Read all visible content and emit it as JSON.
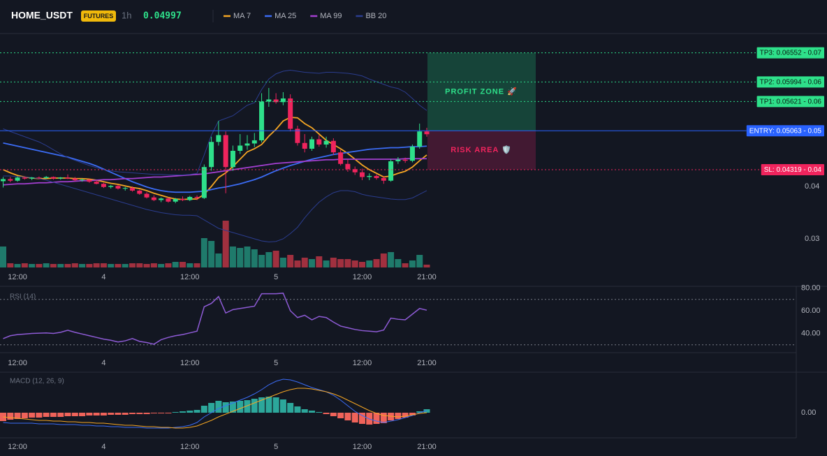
{
  "header": {
    "symbol": "HOME_USDT",
    "badge": "FUTURES",
    "interval": "1h",
    "price": 0.04997
  },
  "chart_data": [
    {
      "type": "candlestick",
      "categories": [
        null,
        null,
        "12:00",
        null,
        null,
        null,
        null,
        null,
        null,
        null,
        null,
        null,
        null,
        null,
        "4",
        null,
        null,
        null,
        null,
        null,
        null,
        null,
        null,
        null,
        null,
        null,
        "12:00",
        null,
        null,
        null,
        null,
        null,
        null,
        null,
        null,
        null,
        null,
        null,
        "5",
        null,
        null,
        null,
        null,
        null,
        null,
        null,
        null,
        null,
        null,
        null,
        "12:00",
        null,
        null,
        null,
        null,
        null,
        null,
        null,
        null,
        "21:00"
      ],
      "open": [
        0.041,
        0.0414,
        0.0411,
        0.0417,
        0.0415,
        0.0417,
        0.0416,
        0.0418,
        0.0415,
        0.0417,
        0.0415,
        0.0412,
        0.0413,
        0.0409,
        0.0405,
        0.0399,
        0.0401,
        0.0396,
        0.0397,
        0.0392,
        0.0386,
        0.0379,
        0.0374,
        0.0377,
        0.0371,
        0.0376,
        0.0374,
        0.038,
        0.0378,
        0.0437,
        0.0485,
        0.0498,
        0.0437,
        0.0468,
        0.0478,
        0.0482,
        0.0488,
        0.0562,
        0.0566,
        0.0561,
        0.0568,
        0.051,
        0.0483,
        0.0472,
        0.049,
        0.048,
        0.0487,
        0.0465,
        0.0443,
        0.0433,
        0.0427,
        0.0418,
        0.042,
        0.0416,
        0.0411,
        0.0448,
        0.0451,
        0.0449,
        0.0476,
        0.0505
      ],
      "high": [
        0.0418,
        0.0418,
        0.0419,
        0.0419,
        0.0418,
        0.0419,
        0.042,
        0.0419,
        0.0418,
        0.0423,
        0.0418,
        0.0415,
        0.0414,
        0.0412,
        0.0407,
        0.0403,
        0.0403,
        0.0399,
        0.04,
        0.0394,
        0.0389,
        0.0383,
        0.0379,
        0.0379,
        0.0378,
        0.0381,
        0.0382,
        0.0383,
        0.0442,
        0.0495,
        0.0525,
        0.0505,
        0.0478,
        0.05,
        0.0498,
        0.0502,
        0.0578,
        0.0588,
        0.0578,
        0.058,
        0.0576,
        0.0516,
        0.05,
        0.0495,
        0.0498,
        0.0495,
        0.0492,
        0.047,
        0.0452,
        0.0438,
        0.0434,
        0.0425,
        0.0423,
        0.042,
        0.0452,
        0.0456,
        0.0455,
        0.048,
        0.052,
        0.0512
      ],
      "low": [
        0.0398,
        0.0408,
        0.0409,
        0.0413,
        0.0412,
        0.0414,
        0.0414,
        0.0413,
        0.0413,
        0.0414,
        0.041,
        0.0409,
        0.0407,
        0.0404,
        0.0397,
        0.0396,
        0.0394,
        0.0392,
        0.039,
        0.0384,
        0.0377,
        0.0372,
        0.037,
        0.0369,
        0.0368,
        0.0372,
        0.0372,
        0.0374,
        0.0376,
        0.043,
        0.0478,
        0.0387,
        0.043,
        0.0462,
        0.047,
        0.0475,
        0.0484,
        0.0552,
        0.0558,
        0.0555,
        0.0505,
        0.0478,
        0.0465,
        0.0468,
        0.0476,
        0.0474,
        0.046,
        0.044,
        0.0428,
        0.0422,
        0.0412,
        0.0412,
        0.0413,
        0.0405,
        0.0409,
        0.0443,
        0.0445,
        0.0446,
        0.0472,
        0.0495
      ],
      "close": [
        0.0414,
        0.0411,
        0.0417,
        0.0415,
        0.0417,
        0.0416,
        0.0418,
        0.0415,
        0.0417,
        0.0415,
        0.0412,
        0.0413,
        0.0409,
        0.0405,
        0.0399,
        0.0401,
        0.0396,
        0.0397,
        0.0392,
        0.0386,
        0.0379,
        0.0374,
        0.0377,
        0.0371,
        0.0376,
        0.0374,
        0.038,
        0.0378,
        0.0437,
        0.0485,
        0.0498,
        0.0437,
        0.0468,
        0.0478,
        0.0482,
        0.0488,
        0.0562,
        0.0566,
        0.0561,
        0.0568,
        0.051,
        0.0483,
        0.0472,
        0.049,
        0.048,
        0.0487,
        0.0465,
        0.0443,
        0.0433,
        0.0427,
        0.0418,
        0.042,
        0.0416,
        0.0411,
        0.0448,
        0.0451,
        0.0449,
        0.0476,
        0.0505,
        0.04997
      ],
      "up_color": "#2ee08a",
      "down_color": "#f0245d",
      "volume": [
        30,
        6,
        5,
        6,
        5,
        5,
        6,
        5,
        5,
        5,
        6,
        5,
        5,
        6,
        6,
        5,
        5,
        5,
        6,
        6,
        5,
        6,
        5,
        6,
        8,
        8,
        6,
        6,
        42,
        38,
        20,
        67,
        30,
        28,
        30,
        26,
        18,
        22,
        24,
        14,
        18,
        10,
        14,
        12,
        16,
        10,
        14,
        12,
        12,
        10,
        8,
        10,
        12,
        20,
        22,
        12,
        6,
        10,
        18,
        4
      ],
      "volume_lim": [
        0,
        100
      ],
      "volume_up_color": "#1f7a6b",
      "volume_down_color": "#a1303f",
      "series": [
        {
          "name": "MA 7",
          "color": "#f5a623",
          "values": [
            0.0432,
            0.0426,
            0.0421,
            0.0418,
            0.0416,
            0.0415,
            0.0415,
            0.0416,
            0.0416,
            0.0416,
            0.0415,
            0.0415,
            0.0414,
            0.0412,
            0.0409,
            0.0406,
            0.0404,
            0.0401,
            0.0398,
            0.0396,
            0.0392,
            0.0387,
            0.0383,
            0.0379,
            0.0376,
            0.0375,
            0.0376,
            0.0376,
            0.0385,
            0.04,
            0.0417,
            0.0426,
            0.0438,
            0.0452,
            0.0466,
            0.0472,
            0.048,
            0.0496,
            0.0509,
            0.0525,
            0.0532,
            0.0531,
            0.052,
            0.0512,
            0.05,
            0.0488,
            0.048,
            0.0472,
            0.0463,
            0.0452,
            0.0441,
            0.0432,
            0.0425,
            0.0418,
            0.042,
            0.0425,
            0.0429,
            0.0437,
            0.0449,
            0.046
          ]
        },
        {
          "name": "MA 25",
          "color": "#3b6cf5",
          "values": [
            0.0483,
            0.048,
            0.0477,
            0.0474,
            0.0471,
            0.0468,
            0.0465,
            0.0462,
            0.0459,
            0.0456,
            0.0452,
            0.0448,
            0.0444,
            0.0439,
            0.0433,
            0.0427,
            0.0421,
            0.0415,
            0.0409,
            0.0404,
            0.0399,
            0.0395,
            0.0392,
            0.039,
            0.0389,
            0.0389,
            0.0389,
            0.039,
            0.0391,
            0.0394,
            0.0397,
            0.0399,
            0.0402,
            0.0405,
            0.0409,
            0.0413,
            0.0418,
            0.0424,
            0.043,
            0.0435,
            0.044,
            0.0444,
            0.0448,
            0.0452,
            0.0455,
            0.0458,
            0.0461,
            0.0463,
            0.0465,
            0.0467,
            0.0469,
            0.0471,
            0.0472,
            0.0473,
            0.0474,
            0.0474,
            0.0475,
            0.0476,
            0.0476,
            0.0477
          ]
        },
        {
          "name": "MA 99",
          "color": "#a43fd1",
          "values": [
            0.0403,
            0.0404,
            0.0405,
            0.0405,
            0.0406,
            0.0407,
            0.0407,
            0.0408,
            0.0409,
            0.0409,
            0.041,
            0.0411,
            0.0411,
            0.0412,
            0.0413,
            0.0413,
            0.0414,
            0.0415,
            0.0415,
            0.0416,
            0.0417,
            0.0418,
            0.0418,
            0.0419,
            0.042,
            0.0421,
            0.0422,
            0.0423,
            0.0424,
            0.0426,
            0.0428,
            0.043,
            0.0432,
            0.0434,
            0.0436,
            0.0438,
            0.044,
            0.0442,
            0.0444,
            0.0445,
            0.0446,
            0.0447,
            0.0448,
            0.0449,
            0.045,
            0.0451,
            0.0451,
            0.0452,
            0.0452,
            0.0452,
            0.0452,
            0.0452,
            0.0452,
            0.0452,
            0.0452,
            0.0452,
            0.0453,
            0.0453,
            0.0453,
            0.0453
          ]
        },
        {
          "name": "BB 20",
          "color": "#2b3d8f",
          "upper": [
            0.051,
            0.0505,
            0.05,
            0.0495,
            0.049,
            0.0485,
            0.0478,
            0.047,
            0.0462,
            0.0455,
            0.045,
            0.0445,
            0.044,
            0.0436,
            0.0432,
            0.043,
            0.0428,
            0.0427,
            0.0426,
            0.0425,
            0.0424,
            0.0423,
            0.0423,
            0.0422,
            0.0422,
            0.0422,
            0.0423,
            0.0425,
            0.046,
            0.0498,
            0.0525,
            0.053,
            0.0535,
            0.0545,
            0.0555,
            0.056,
            0.0585,
            0.0605,
            0.0615,
            0.062,
            0.0622,
            0.062,
            0.0618,
            0.0617,
            0.0616,
            0.0618,
            0.0618,
            0.0617,
            0.0616,
            0.0614,
            0.0611,
            0.0605,
            0.06,
            0.0595,
            0.059,
            0.0587,
            0.058,
            0.0568,
            0.0555,
            0.0545
          ],
          "lower": [
            0.042,
            0.042,
            0.0419,
            0.0418,
            0.0417,
            0.0415,
            0.0412,
            0.0408,
            0.0404,
            0.04,
            0.0396,
            0.0392,
            0.0388,
            0.0384,
            0.038,
            0.0376,
            0.0372,
            0.0368,
            0.0364,
            0.036,
            0.0356,
            0.0353,
            0.035,
            0.0348,
            0.0346,
            0.0345,
            0.0345,
            0.0344,
            0.0336,
            0.0328,
            0.032,
            0.0316,
            0.0312,
            0.0308,
            0.0304,
            0.03,
            0.0296,
            0.0294,
            0.0295,
            0.03,
            0.031,
            0.0322,
            0.034,
            0.0356,
            0.037,
            0.038,
            0.0388,
            0.0392,
            0.0392,
            0.039,
            0.0385,
            0.0382,
            0.038,
            0.0378,
            0.0376,
            0.0375,
            0.0375,
            0.0378,
            0.0385,
            0.0392
          ]
        }
      ],
      "ylim": [
        0.02453,
        0.06893
      ],
      "yticks": [
        0.04,
        0.03
      ],
      "zones": [
        {
          "label": "PROFIT ZONE 🚀",
          "from": 0.05063,
          "to": 0.06552,
          "color": "#1c8a5c",
          "text_color": "#2ee08a"
        },
        {
          "label": "RISK AREA 🛡️",
          "from": 0.04319,
          "to": 0.05063,
          "color": "#8a1e4a",
          "text_color": "#f0245d"
        }
      ],
      "levels": [
        {
          "label": "TP3: 0.06552 - 0.07",
          "value": 0.06552,
          "color": "#2ee08a",
          "text_color": "#0b1a12",
          "style": "dotted"
        },
        {
          "label": "TP2: 0.05994 - 0.06",
          "value": 0.05994,
          "color": "#2ee08a",
          "text_color": "#0b1a12",
          "style": "dotted"
        },
        {
          "label": "TP1: 0.05621 - 0.06",
          "value": 0.05621,
          "color": "#2ee08a",
          "text_color": "#0b1a12",
          "style": "dotted"
        },
        {
          "label": "ENTRY: 0.05063 - 0.05",
          "value": 0.05063,
          "color": "#2962ff",
          "text_color": "#ffffff",
          "style": "solid"
        },
        {
          "label": "SL: 0.04319 - 0.04",
          "value": 0.04319,
          "color": "#f0245d",
          "text_color": "#ffffff",
          "style": "dotted"
        }
      ]
    },
    {
      "type": "line",
      "title": "RSI (14)",
      "color": "#8e5bd6",
      "values": [
        35.4,
        38,
        39,
        39.5,
        40,
        40.2,
        40.5,
        40,
        41,
        42.8,
        41,
        39.5,
        38,
        36.5,
        35,
        34,
        32.5,
        33.5,
        35.5,
        33,
        32,
        30.5,
        34.5,
        36.5,
        38,
        39,
        40.5,
        42,
        63.5,
        66.5,
        72.5,
        58,
        61,
        62,
        63,
        64,
        75,
        75,
        75,
        75.5,
        60,
        54,
        56,
        52,
        55,
        54,
        50,
        46.5,
        45,
        43.5,
        42.5,
        42,
        41.5,
        43,
        53.5,
        52.5,
        52,
        57,
        62,
        60.5
      ],
      "ylim": [
        23.08,
        81.54
      ],
      "yticks": [
        {
          "value": 80,
          "label": "80.00"
        },
        {
          "value": 60,
          "label": "60.00"
        },
        {
          "value": 40,
          "label": "40.00"
        }
      ],
      "levels": [
        70,
        30
      ]
    },
    {
      "type": "macd",
      "title": "MACD (12, 26, 9)",
      "series": [
        {
          "color": "#3b6cf5",
          "values": [
            -0.0007,
            -0.00075,
            -0.00075,
            -0.00075,
            -0.00075,
            -0.0008,
            -0.0008,
            -0.0008,
            -0.00085,
            -0.00085,
            -0.00085,
            -0.0009,
            -0.0009,
            -0.00095,
            -0.00095,
            -0.001,
            -0.001,
            -0.00105,
            -0.00105,
            -0.00105,
            -0.0011,
            -0.0011,
            -0.0011,
            -0.0011,
            -0.00105,
            -0.001,
            -0.0009,
            -0.0007,
            -0.0003,
            0,
            0.0003,
            0.0005,
            0.0007,
            0.0009,
            0.0011,
            0.00135,
            0.00165,
            0.002,
            0.00225,
            0.0024,
            0.00235,
            0.0022,
            0.002,
            0.0018,
            0.00165,
            0.0015,
            0.00125,
            0.0009,
            0.0005,
            0.0001,
            -0.0002,
            -0.00045,
            -0.0006,
            -0.0007,
            -0.0006,
            -0.0005,
            -0.00035,
            -0.0002,
            0,
            0.00015
          ]
        },
        {
          "color": "#f5a623",
          "values": [
            -0.0003,
            -0.00035,
            -0.0004,
            -0.00045,
            -0.0005,
            -0.00055,
            -0.00055,
            -0.0006,
            -0.0006,
            -0.00065,
            -0.00065,
            -0.0007,
            -0.0007,
            -0.00075,
            -0.00075,
            -0.0008,
            -0.00085,
            -0.0009,
            -0.0009,
            -0.00095,
            -0.001,
            -0.001,
            -0.00105,
            -0.00105,
            -0.0011,
            -0.0011,
            -0.00105,
            -0.00095,
            -0.00075,
            -0.00055,
            -0.0003,
            -0.0001,
            0.0001,
            0.0003,
            0.0005,
            0.0007,
            0.0009,
            0.0011,
            0.0013,
            0.0015,
            0.00165,
            0.00175,
            0.00175,
            0.0017,
            0.0016,
            0.0015,
            0.00135,
            0.00115,
            0.0009,
            0.00065,
            0.0004,
            0.00015,
            -5e-05,
            -0.0002,
            -0.00025,
            -0.0003,
            -0.00025,
            -0.00015,
            -5e-05,
            0
          ]
        }
      ],
      "histogram": {
        "up_color": "#2ca79b",
        "down_color": "#f0635a",
        "values": [
          -0.0006,
          -0.0005,
          -0.00045,
          -0.0004,
          -0.00035,
          -0.00035,
          -0.0003,
          -0.0003,
          -0.0003,
          -0.00025,
          -0.00025,
          -0.00025,
          -0.0002,
          -0.0002,
          -0.0002,
          -0.00015,
          -0.00015,
          -0.00015,
          -0.0001,
          -0.0001,
          -0.0001,
          -5e-05,
          -5e-05,
          -5e-05,
          5e-05,
          0.0001,
          0.00015,
          0.0002,
          0.0005,
          0.0007,
          0.00085,
          0.00075,
          0.0008,
          0.00085,
          0.0009,
          0.001,
          0.0011,
          0.00115,
          0.0011,
          0.00095,
          0.0007,
          0.00045,
          0.00025,
          0.00015,
          5e-05,
          -0.0001,
          -0.00025,
          -0.0004,
          -0.00055,
          -0.0007,
          -0.0008,
          -0.00085,
          -0.0008,
          -0.00075,
          -0.00055,
          -0.00045,
          -0.00035,
          -0.0002,
          0.0001,
          0.00025
        ]
      },
      "ylim": [
        -0.0018,
        0.0028
      ],
      "yticks": [
        {
          "value": 0,
          "label": "0.00"
        }
      ]
    }
  ]
}
